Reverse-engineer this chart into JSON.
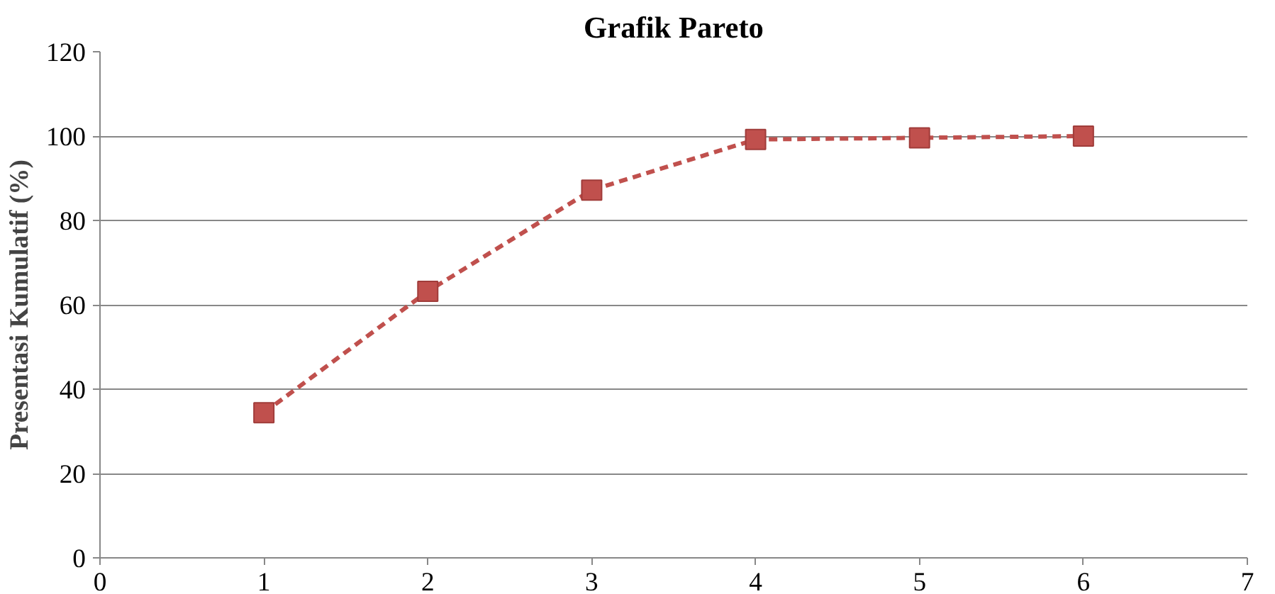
{
  "chart_data": {
    "type": "line",
    "title": "Grafik Pareto",
    "ylabel": "Presentasi Kumulatif (%)",
    "x": [
      1,
      2,
      3,
      4,
      5,
      6
    ],
    "series": [
      {
        "color": "#c0504d",
        "values": [
          34.4,
          63.2,
          87.2,
          99.2,
          99.6,
          100
        ]
      }
    ],
    "xlim": [
      0,
      7
    ],
    "xticks": [
      0,
      1,
      2,
      3,
      4,
      5,
      6,
      7
    ],
    "ylim": [
      0,
      120
    ],
    "yticks": [
      0,
      20,
      40,
      60,
      80,
      100,
      120
    ],
    "grid": "y",
    "marker": "square",
    "line_style": "dashed"
  }
}
